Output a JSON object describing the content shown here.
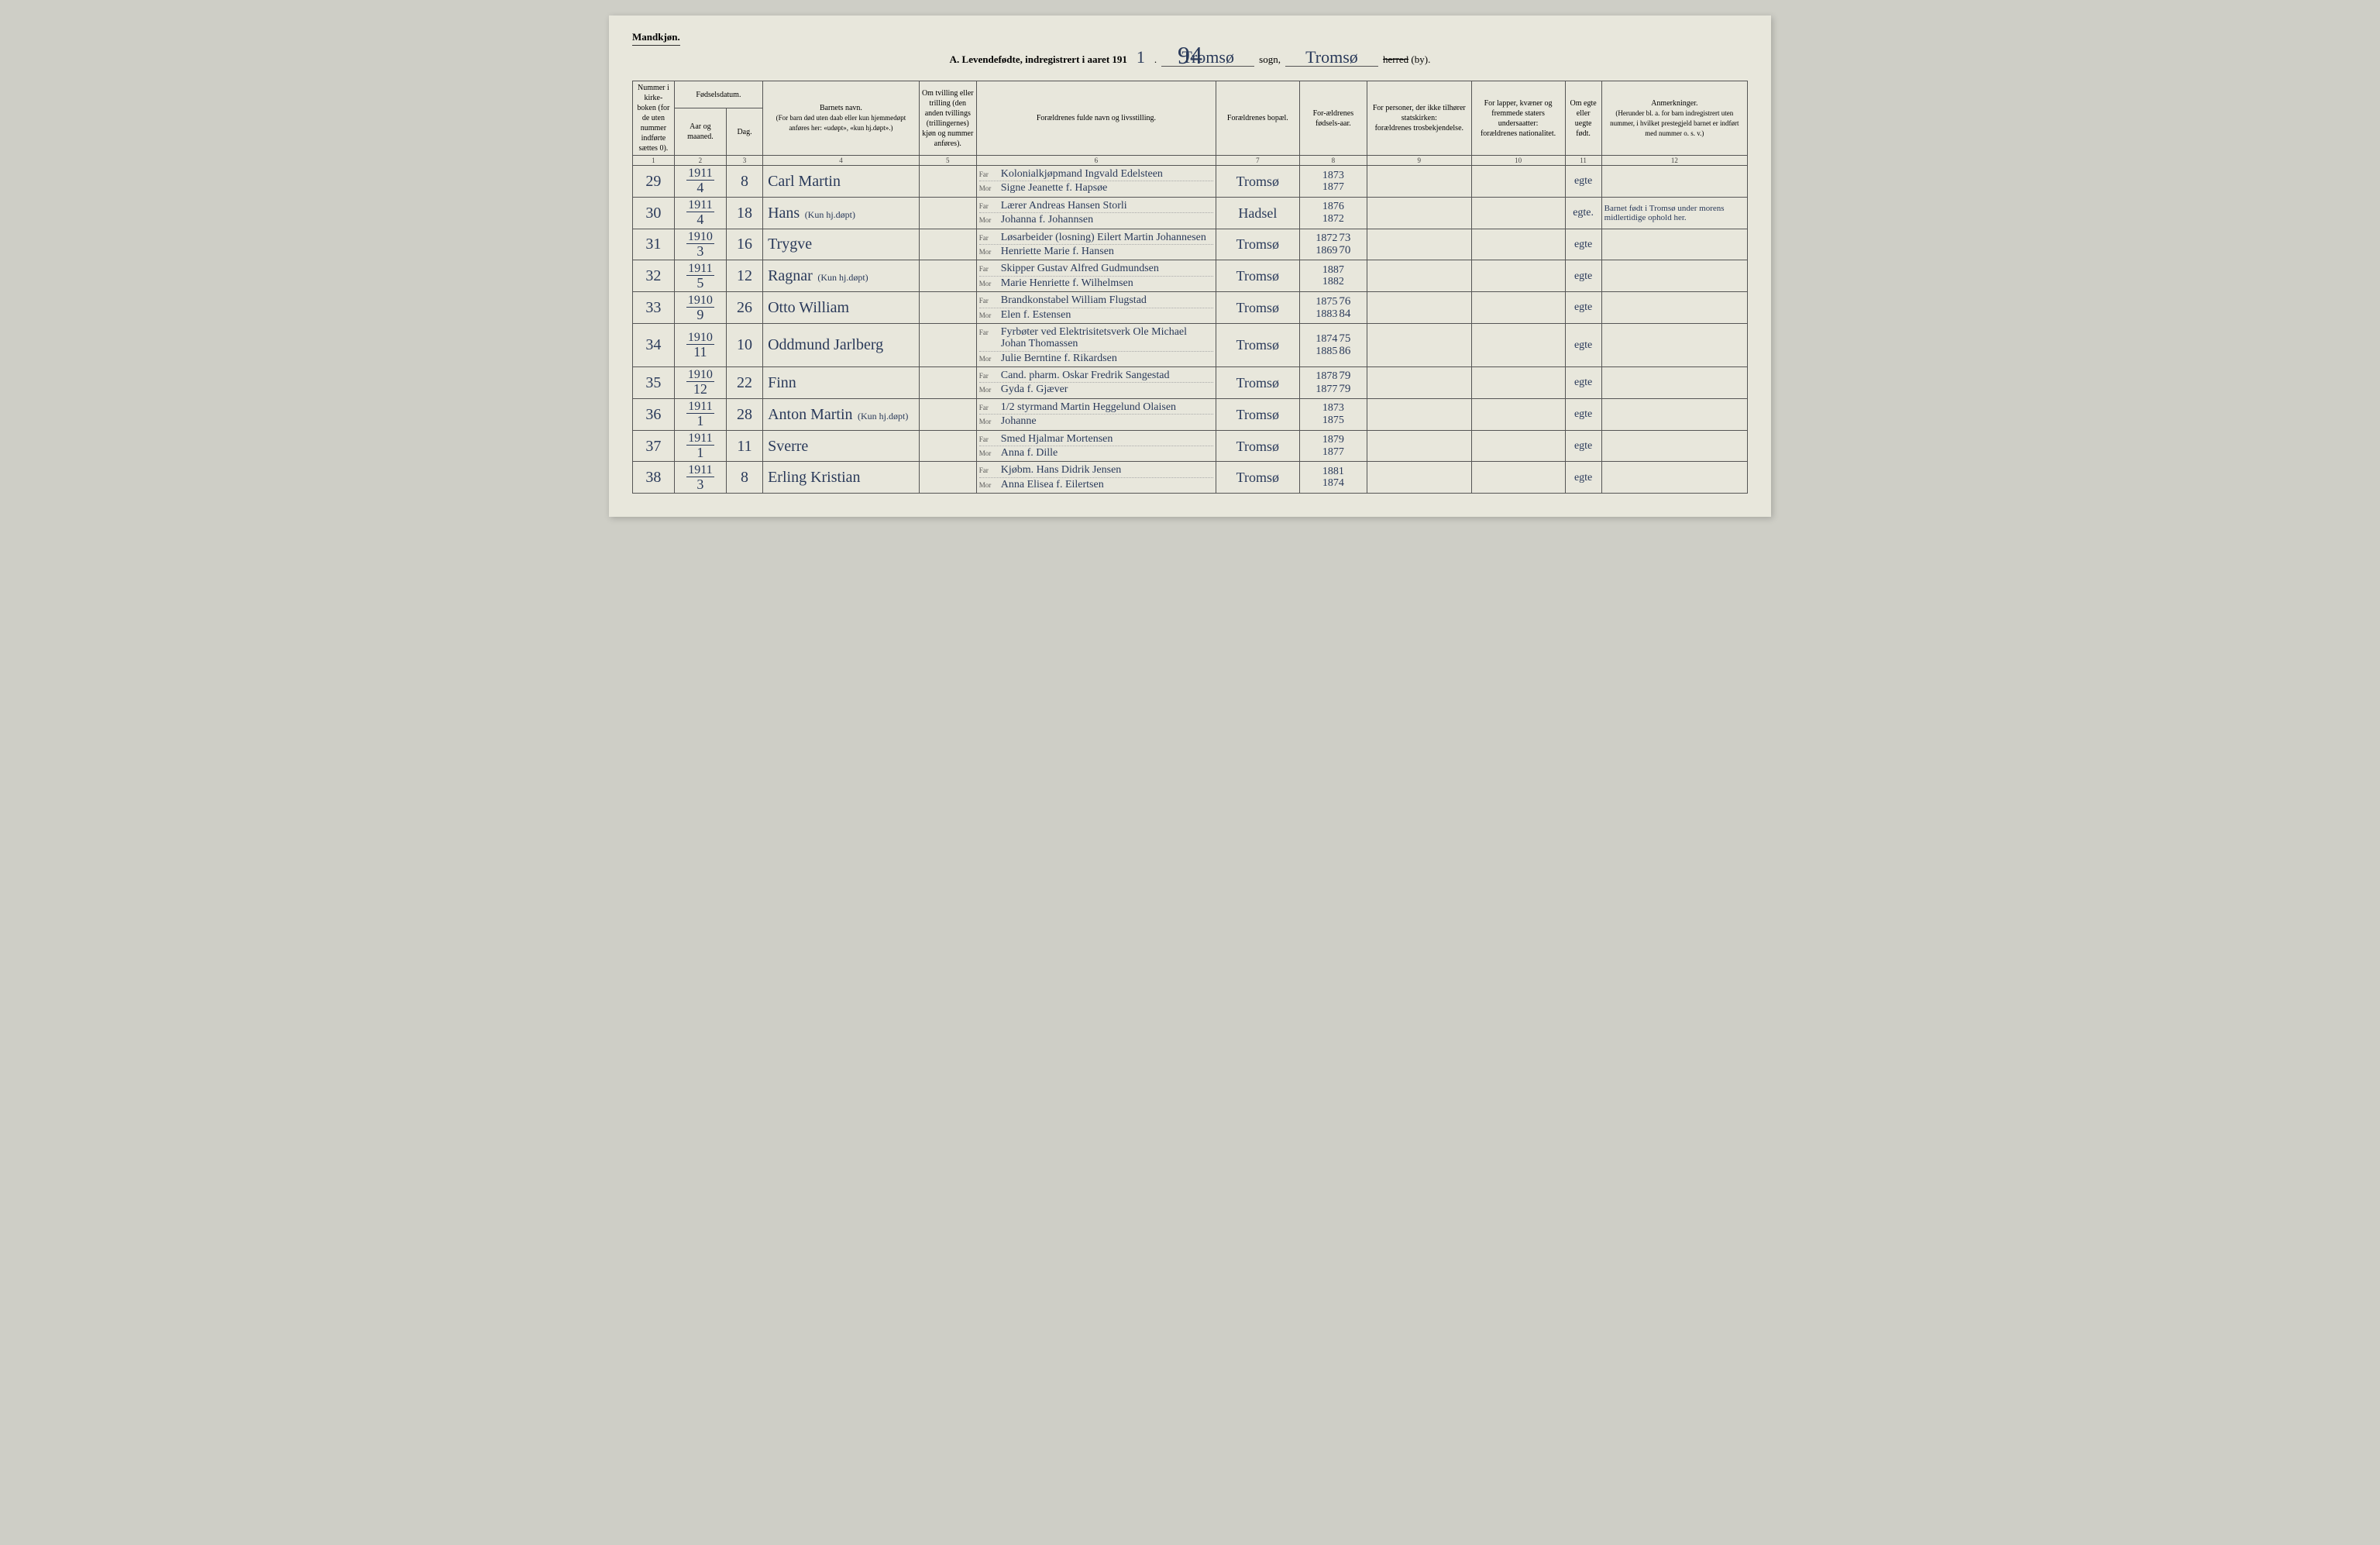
{
  "header": {
    "gender": "Mandkjøn.",
    "title_prefix": "A.  Levendefødte, indregistrert i aaret 191",
    "year_digit": "1",
    "sogn_handwritten": "Tromsø",
    "sogn_label": "sogn,",
    "herred_handwritten": "Tromsø",
    "herred_word_struck": "herred",
    "by_label": "(by).",
    "page_number": "94"
  },
  "columns": {
    "c1": "Nummer i kirke-boken (for de uten nummer indførte sættes 0).",
    "c2_top": "Fødselsdatum.",
    "c2a": "Aar og maaned.",
    "c2b": "Dag.",
    "c4_top": "Barnets navn.",
    "c4_sub": "(For barn død uten daab eller kun hjemmedøpt anføres her: «udøpt», «kun hj.døpt».)",
    "c5": "Om tvilling eller trilling (den anden tvillings (trillingernes) kjøn og nummer anføres).",
    "c6": "Forældrenes fulde navn og livsstilling.",
    "c7": "Forældrenes bopæl.",
    "c8": "For-ældrenes fødsels-aar.",
    "c9_top": "For personer, der ikke tilhører statskirken:",
    "c9_sub": "forældrenes trosbekjendelse.",
    "c10_top": "For lapper, kvæner og fremmede staters undersaatter:",
    "c10_sub": "forældrenes nationalitet.",
    "c11": "Om egte eller uegte født.",
    "c12_top": "Anmerkninger.",
    "c12_sub": "(Herunder bl. a. for barn indregistrert uten nummer, i hvilket prestegjeld barnet er indført med nummer o. s. v.)",
    "far_label": "Far",
    "mor_label": "Mor"
  },
  "colnums": [
    "1",
    "2",
    "3",
    "4",
    "5",
    "6",
    "7",
    "8",
    "9",
    "10",
    "11",
    "12"
  ],
  "rows": [
    {
      "num": "29",
      "year": "1911",
      "month": "4",
      "day": "8",
      "name": "Carl Martin",
      "name_annot": "",
      "far": "Kolonialkjøpmand Ingvald Edelsteen",
      "mor": "Signe Jeanette f. Hapsøe",
      "bopel": "Tromsø",
      "year_far": "1873",
      "year_mor": "1877",
      "year_far_corr": "",
      "year_mor_corr": "",
      "egte": "egte",
      "anm": "",
      "red": false
    },
    {
      "num": "30",
      "year": "1911",
      "month": "4",
      "day": "18",
      "name": "Hans",
      "name_annot": "(Kun hj.døpt)",
      "far": "Lærer Andreas Hansen Storli",
      "mor": "Johanna f. Johannsen",
      "bopel": "Hadsel",
      "year_far": "1876",
      "year_mor": "1872",
      "year_far_corr": "",
      "year_mor_corr": "",
      "egte": "egte.",
      "anm": "Barnet født i Tromsø under morens midlertidige ophold her.",
      "red": false
    },
    {
      "num": "31",
      "year": "1910",
      "month": "3",
      "day": "16",
      "name": "Trygve",
      "name_annot": "",
      "far": "Løsarbeider (losning) Eilert Martin Johannesen",
      "mor": "Henriette Marie f. Hansen",
      "bopel": "Tromsø",
      "year_far": "1872",
      "year_mor": "1869",
      "year_far_corr": "73",
      "year_mor_corr": "70",
      "egte": "egte",
      "anm": "",
      "red": true
    },
    {
      "num": "32",
      "year": "1911",
      "month": "5",
      "day": "12",
      "name": "Ragnar",
      "name_annot": "(Kun hj.døpt)",
      "far": "Skipper Gustav Alfred Gudmundsen",
      "mor": "Marie Henriette f. Wilhelmsen",
      "bopel": "Tromsø",
      "year_far": "1887",
      "year_mor": "1882",
      "year_far_corr": "",
      "year_mor_corr": "",
      "egte": "egte",
      "anm": "",
      "red": false
    },
    {
      "num": "33",
      "year": "1910",
      "month": "9",
      "day": "26",
      "name": "Otto William",
      "name_annot": "",
      "far": "Brandkonstabel William Flugstad",
      "mor": "Elen f. Estensen",
      "bopel": "Tromsø",
      "year_far": "1875",
      "year_mor": "1883",
      "year_far_corr": "76",
      "year_mor_corr": "84",
      "egte": "egte",
      "anm": "",
      "red": true
    },
    {
      "num": "34",
      "year": "1910",
      "month": "11",
      "day": "10",
      "name": "Oddmund Jarlberg",
      "name_annot": "",
      "far": "Fyrbøter ved Elektrisitetsverk Ole Michael Johan Thomassen",
      "mor": "Julie Berntine f. Rikardsen",
      "bopel": "Tromsø",
      "year_far": "1874",
      "year_mor": "1885",
      "year_far_corr": "75",
      "year_mor_corr": "86",
      "egte": "egte",
      "anm": "",
      "red": true
    },
    {
      "num": "35",
      "year": "1910",
      "month": "12",
      "day": "22",
      "name": "Finn",
      "name_annot": "",
      "far": "Cand. pharm. Oskar Fredrik Sangestad",
      "mor": "Gyda f. Gjæver",
      "bopel": "Tromsø",
      "year_far": "1878",
      "year_mor": "1877",
      "year_far_corr": "79",
      "year_mor_corr": "79",
      "egte": "egte",
      "anm": "",
      "red": true
    },
    {
      "num": "36",
      "year": "1911",
      "month": "1",
      "day": "28",
      "name": "Anton Martin",
      "name_annot": "(Kun hj.døpt)",
      "far": "1/2 styrmand Martin Heggelund Olaisen",
      "mor": "Johanne",
      "bopel": "Tromsø",
      "year_far": "1873",
      "year_mor": "1875",
      "year_far_corr": "",
      "year_mor_corr": "",
      "egte": "egte",
      "anm": "",
      "red": false
    },
    {
      "num": "37",
      "year": "1911",
      "month": "1",
      "day": "11",
      "name": "Sverre",
      "name_annot": "",
      "far": "Smed Hjalmar Mortensen",
      "mor": "Anna f. Dille",
      "bopel": "Tromsø",
      "year_far": "1879",
      "year_mor": "1877",
      "year_far_corr": "",
      "year_mor_corr": "",
      "egte": "egte",
      "anm": "",
      "red": false
    },
    {
      "num": "38",
      "year": "1911",
      "month": "3",
      "day": "8",
      "name": "Erling Kristian",
      "name_annot": "",
      "far": "Kjøbm. Hans Didrik Jensen",
      "mor": "Anna Elisea f. Eilertsen",
      "bopel": "Tromsø",
      "year_far": "1881",
      "year_mor": "1874",
      "year_far_corr": "",
      "year_mor_corr": "",
      "egte": "egte",
      "anm": "",
      "red": false
    }
  ],
  "style": {
    "page_bg": "#e8e7dc",
    "body_bg": "#cecec6",
    "ink": "#2a3a5a",
    "border": "#555",
    "red": "#b03030",
    "col_widths_pct": [
      4,
      5,
      3.5,
      15,
      5.5,
      23,
      8,
      6.5,
      10,
      9,
      3.5,
      14
    ]
  }
}
